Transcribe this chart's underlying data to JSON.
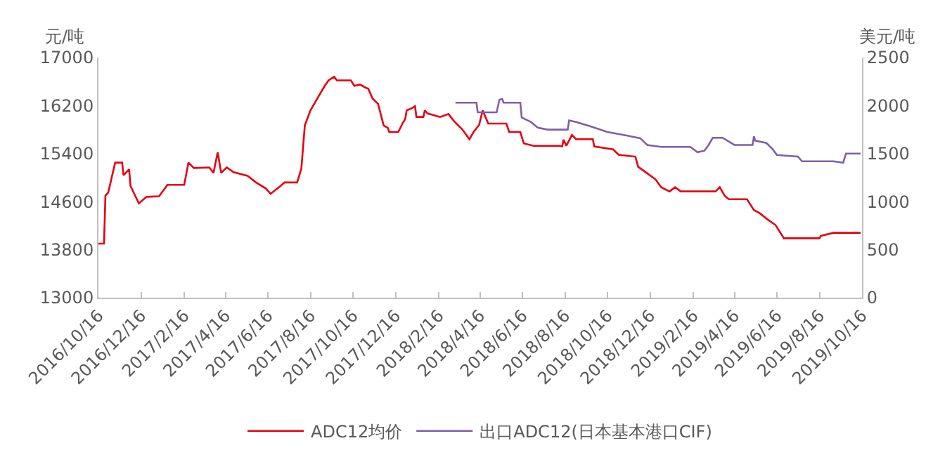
{
  "chart_data": {
    "type": "line",
    "ylabel": "元/吨",
    "y2label": "美元/吨",
    "legend": "bottom",
    "grid": false,
    "marker": "none",
    "line_style": "solid",
    "xlim": [
      "2016-10-16",
      "2019-10-16"
    ],
    "xticks": [
      {
        "value": "2016-10-16",
        "label": "2016/10/16"
      },
      {
        "value": "2016-12-16",
        "label": "2016/12/16"
      },
      {
        "value": "2017-02-16",
        "label": "2017/2/16"
      },
      {
        "value": "2017-04-16",
        "label": "2017/4/16"
      },
      {
        "value": "2017-06-16",
        "label": "2017/6/16"
      },
      {
        "value": "2017-08-16",
        "label": "2017/8/16"
      },
      {
        "value": "2017-10-16",
        "label": "2017/10/16"
      },
      {
        "value": "2017-12-16",
        "label": "2017/12/16"
      },
      {
        "value": "2018-02-16",
        "label": "2018/2/16"
      },
      {
        "value": "2018-04-16",
        "label": "2018/4/16"
      },
      {
        "value": "2018-06-16",
        "label": "2018/6/16"
      },
      {
        "value": "2018-08-16",
        "label": "2018/8/16"
      },
      {
        "value": "2018-10-16",
        "label": "2018/10/16"
      },
      {
        "value": "2018-12-16",
        "label": "2018/12/16"
      },
      {
        "value": "2019-02-16",
        "label": "2019/2/16"
      },
      {
        "value": "2019-04-16",
        "label": "2019/4/16"
      },
      {
        "value": "2019-06-16",
        "label": "2019/6/16"
      },
      {
        "value": "2019-08-16",
        "label": "2019/8/16"
      },
      {
        "value": "2019-10-16",
        "label": "2019/10/16"
      }
    ],
    "ylim": [
      13000,
      17000
    ],
    "yticks": [
      13000,
      13800,
      14600,
      15400,
      16200,
      17000
    ],
    "y2lim": [
      0,
      2500
    ],
    "y2ticks": [
      0,
      500,
      1000,
      1500,
      2000,
      2500
    ],
    "series": [
      {
        "name": "ADC12均价",
        "color": "#e60012",
        "x": [
          "2016-10-16",
          "2016-10-24",
          "2016-10-26",
          "2016-10-30",
          "2016-11-09",
          "2016-11-19",
          "2016-11-21",
          "2016-11-29",
          "2016-12-01",
          "2016-12-13",
          "2016-12-24",
          "2017-01-11",
          "2017-01-23",
          "2017-02-16",
          "2017-02-18",
          "2017-02-22",
          "2017-03-02",
          "2017-03-24",
          "2017-03-30",
          "2017-04-05",
          "2017-04-10",
          "2017-04-18",
          "2017-04-28",
          "2017-05-18",
          "2017-05-30",
          "2017-06-13",
          "2017-06-20",
          "2017-07-04",
          "2017-07-10",
          "2017-07-28",
          "2017-08-03",
          "2017-08-08",
          "2017-08-16",
          "2017-08-26",
          "2017-09-05",
          "2017-09-11",
          "2017-09-19",
          "2017-09-23",
          "2017-10-13",
          "2017-10-18",
          "2017-10-26",
          "2017-11-03",
          "2017-11-07",
          "2017-11-13",
          "2017-11-21",
          "2017-11-29",
          "2017-12-05",
          "2017-12-07",
          "2017-12-20",
          "2017-12-26",
          "2017-12-30",
          "2018-01-01",
          "2018-01-09",
          "2018-01-13",
          "2018-01-15",
          "2018-01-25",
          "2018-01-27",
          "2018-01-31",
          "2018-02-18",
          "2018-03-02",
          "2018-03-10",
          "2018-03-22",
          "2018-04-01",
          "2018-04-07",
          "2018-04-15",
          "2018-04-20",
          "2018-04-28",
          "2018-05-24",
          "2018-05-28",
          "2018-06-13",
          "2018-06-18",
          "2018-07-02",
          "2018-08-08",
          "2018-08-12",
          "2018-08-14",
          "2018-08-18",
          "2018-08-26",
          "2018-09-01",
          "2018-09-25",
          "2018-09-27",
          "2018-10-24",
          "2018-11-01",
          "2018-11-25",
          "2018-11-29",
          "2018-12-11",
          "2018-12-24",
          "2019-01-01",
          "2019-01-13",
          "2019-01-21",
          "2019-01-29",
          "2019-03-20",
          "2019-03-26",
          "2019-04-02",
          "2019-04-08",
          "2019-05-04",
          "2019-05-14",
          "2019-05-22",
          "2019-06-03",
          "2019-06-14",
          "2019-06-26",
          "2019-08-16",
          "2019-08-18",
          "2019-09-05",
          "2019-10-14"
        ],
        "values": [
          13900,
          13900,
          14700,
          14750,
          15250,
          15250,
          15040,
          15140,
          14860,
          14570,
          14680,
          14690,
          14880,
          14880,
          15000,
          15250,
          15160,
          15170,
          15080,
          15420,
          15080,
          15170,
          15090,
          15030,
          14920,
          14820,
          14730,
          14860,
          14920,
          14920,
          15150,
          15870,
          16120,
          16320,
          16520,
          16620,
          16680,
          16620,
          16620,
          16530,
          16550,
          16500,
          16480,
          16320,
          16230,
          15870,
          15830,
          15760,
          15760,
          15900,
          15980,
          16120,
          16160,
          16190,
          16010,
          16010,
          16120,
          16070,
          16010,
          16060,
          15940,
          15800,
          15640,
          15760,
          15880,
          16120,
          15900,
          15900,
          15760,
          15760,
          15570,
          15530,
          15530,
          15520,
          15630,
          15530,
          15710,
          15640,
          15640,
          15520,
          15470,
          15380,
          15350,
          15180,
          15080,
          14970,
          14840,
          14770,
          14840,
          14770,
          14770,
          14840,
          14700,
          14640,
          14640,
          14460,
          14410,
          14300,
          14210,
          13990,
          13990,
          14030,
          14080,
          14080
        ]
      },
      {
        "name": "出口ADC12(日本基本港口CIF)",
        "color": "#7f5fa8",
        "axis": "y2",
        "x": [
          "2018-03-12",
          "2018-04-11",
          "2018-04-13",
          "2018-05-10",
          "2018-05-14",
          "2018-05-18",
          "2018-05-20",
          "2018-06-13",
          "2018-06-15",
          "2018-06-28",
          "2018-07-08",
          "2018-07-22",
          "2018-08-20",
          "2018-08-22",
          "2018-09-01",
          "2018-09-21",
          "2018-10-16",
          "2018-11-11",
          "2018-12-02",
          "2018-12-12",
          "2019-01-01",
          "2019-02-12",
          "2019-02-22",
          "2019-03-04",
          "2019-03-10",
          "2019-03-16",
          "2019-03-30",
          "2019-04-16",
          "2019-05-12",
          "2019-05-14",
          "2019-05-16",
          "2019-06-01",
          "2019-06-10",
          "2019-06-16",
          "2019-07-16",
          "2019-07-22",
          "2019-09-05",
          "2019-09-19",
          "2019-09-23",
          "2019-10-14"
        ],
        "values": [
          2030,
          2030,
          1930,
          1930,
          2060,
          2070,
          2030,
          2030,
          1875,
          1830,
          1770,
          1750,
          1750,
          1845,
          1830,
          1785,
          1725,
          1690,
          1660,
          1590,
          1570,
          1570,
          1515,
          1530,
          1590,
          1665,
          1665,
          1590,
          1590,
          1680,
          1635,
          1610,
          1545,
          1485,
          1470,
          1420,
          1420,
          1405,
          1500,
          1500
        ]
      }
    ]
  }
}
